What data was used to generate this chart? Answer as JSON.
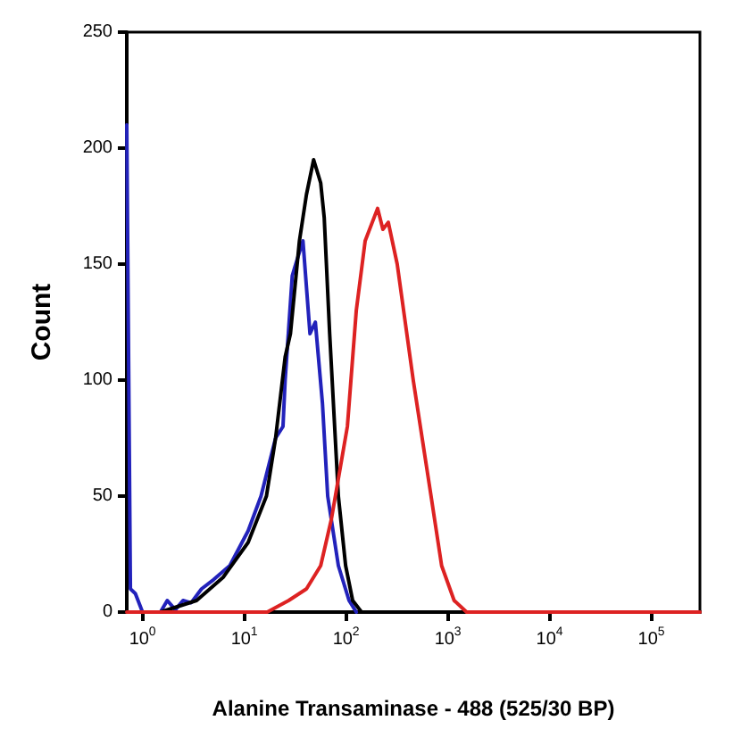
{
  "chart_data": {
    "type": "line",
    "xlabel": "Alanine Transaminase - 488 (525/30 BP)",
    "ylabel": "Count",
    "log": "x",
    "xlim": [
      0.7,
      300000
    ],
    "ylim": [
      0,
      250
    ],
    "xticks": [
      {
        "value": 1,
        "label": "10$^{0}$"
      },
      {
        "value": 10,
        "label": "10$^{1}$"
      },
      {
        "value": 100,
        "label": "10$^{2}$"
      },
      {
        "value": 1000,
        "label": "10$^{3}$"
      },
      {
        "value": 10000,
        "label": "10$^{4}$"
      },
      {
        "value": 100000,
        "label": "10$^{5}$"
      }
    ],
    "yticks": [
      0,
      50,
      100,
      150,
      200,
      250
    ],
    "grid": false,
    "marker": "none",
    "line_style": "solid",
    "series": [
      {
        "color": "#2222bb",
        "x": [
          0.7,
          0.76,
          0.85,
          1.0,
          1.5,
          1.75,
          2.1,
          2.5,
          3.0,
          3.8,
          5.0,
          7.2,
          10.9,
          14.6,
          20.3,
          24,
          25.2,
          29.6,
          32,
          37.7,
          44.2,
          49.9,
          58.6,
          66,
          84,
          107,
          126
        ],
        "values": [
          210,
          10,
          8,
          0,
          0,
          5,
          1,
          5,
          4,
          10,
          14,
          20,
          35,
          50,
          75,
          80,
          100,
          145,
          150,
          160,
          120,
          125,
          90,
          50,
          20,
          5,
          0
        ]
      },
      {
        "color": "#000000",
        "x": [
          0.7,
          0.8,
          1.5,
          3.4,
          6.2,
          10.9,
          16.5,
          20.3,
          25.2,
          28.4,
          34.8,
          40.8,
          48,
          56.3,
          61,
          69,
          84,
          99,
          116,
          142,
          300000
        ],
        "values": [
          0,
          0,
          0,
          5,
          15,
          30,
          50,
          75,
          110,
          120,
          160,
          180,
          195,
          185,
          170,
          120,
          50,
          20,
          5,
          0,
          0
        ]
      },
      {
        "color": "#dd2222",
        "x": [
          0.7,
          16.8,
          27.3,
          40.8,
          56.3,
          71.7,
          103,
          126,
          154,
          204,
          230,
          260,
          318,
          457,
          684,
          869,
          1153,
          1528,
          300000
        ],
        "values": [
          0,
          0,
          5,
          10,
          20,
          40,
          80,
          130,
          160,
          174,
          165,
          168,
          150,
          100,
          50,
          20,
          5,
          0,
          0
        ]
      }
    ]
  }
}
